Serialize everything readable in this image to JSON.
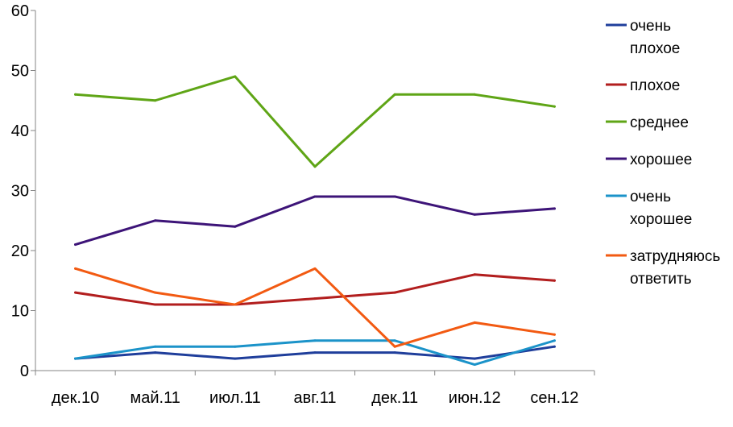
{
  "chart_data": {
    "type": "line",
    "categories": [
      "дек.10",
      "май.11",
      "июл.11",
      "авг.11",
      "дек.11",
      "июн.12",
      "сен.12"
    ],
    "ylim": [
      0,
      60
    ],
    "yticks": [
      0,
      10,
      20,
      30,
      40,
      50,
      60
    ],
    "grid": false,
    "legend_position": "right",
    "series": [
      {
        "name": "очень плохое",
        "legend_lines": [
          "очень",
          "плохое"
        ],
        "color": "#1F3E9B",
        "values": [
          2,
          3,
          2,
          3,
          3,
          2,
          4
        ]
      },
      {
        "name": "плохое",
        "legend_lines": [
          "плохое"
        ],
        "color": "#B21E1E",
        "values": [
          13,
          11,
          11,
          12,
          13,
          16,
          15
        ]
      },
      {
        "name": "среднее",
        "legend_lines": [
          "среднее"
        ],
        "color": "#5FA516",
        "values": [
          46,
          45,
          49,
          34,
          46,
          46,
          44
        ]
      },
      {
        "name": "хорошее",
        "legend_lines": [
          "хорошее"
        ],
        "color": "#3D1478",
        "values": [
          21,
          25,
          24,
          29,
          29,
          26,
          27
        ]
      },
      {
        "name": "очень хорошее",
        "legend_lines": [
          "очень",
          "хорошее"
        ],
        "color": "#1B93C9",
        "values": [
          2,
          4,
          4,
          5,
          5,
          1,
          5
        ]
      },
      {
        "name": "затрудняюсь ответить",
        "legend_lines": [
          "затрудняюсь",
          "ответить"
        ],
        "color": "#F25A12",
        "values": [
          17,
          13,
          11,
          17,
          4,
          8,
          6
        ]
      }
    ]
  }
}
